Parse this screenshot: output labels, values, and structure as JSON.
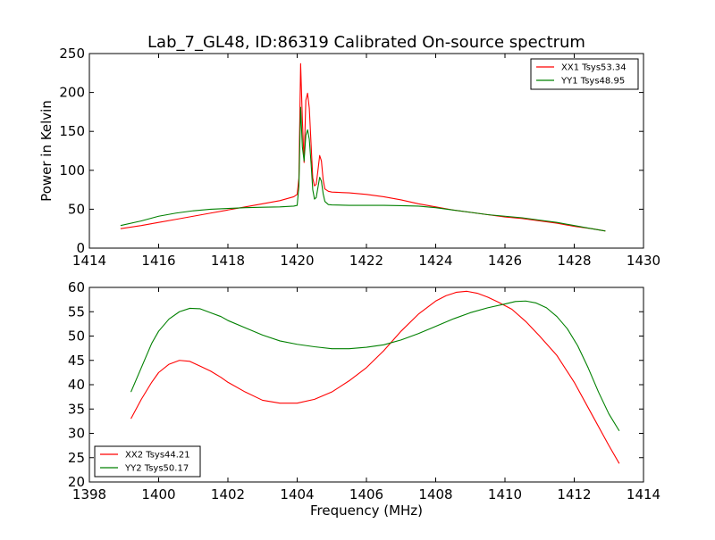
{
  "figure": {
    "title": "Lab_7_GL48, ID:86319 Calibrated On-source spectrum"
  },
  "chart_data": [
    {
      "type": "line",
      "title": "Lab_7_GL48, ID:86319 Calibrated On-source spectrum",
      "xlabel": "",
      "ylabel": "Power in Kelvin",
      "xlim": [
        1414,
        1430
      ],
      "ylim": [
        0,
        250
      ],
      "xticks": [
        1414,
        1416,
        1418,
        1420,
        1422,
        1424,
        1426,
        1428,
        1430
      ],
      "yticks": [
        0,
        50,
        100,
        150,
        200,
        250
      ],
      "legend_position": "upper-right",
      "grid": false,
      "series": [
        {
          "name": "XX1 Tsys53.34",
          "color": "#ff0000",
          "x": [
            1414.9,
            1415.5,
            1416.0,
            1416.5,
            1417.0,
            1417.5,
            1418.0,
            1418.5,
            1419.0,
            1419.5,
            1419.9,
            1420.0,
            1420.05,
            1420.1,
            1420.15,
            1420.2,
            1420.25,
            1420.3,
            1420.35,
            1420.4,
            1420.45,
            1420.5,
            1420.55,
            1420.6,
            1420.65,
            1420.7,
            1420.75,
            1420.8,
            1420.9,
            1421.0,
            1421.5,
            1422.0,
            1422.5,
            1423.0,
            1423.5,
            1424.0,
            1424.5,
            1425.0,
            1425.5,
            1426.0,
            1426.5,
            1427.0,
            1427.5,
            1428.0,
            1428.5,
            1428.9
          ],
          "y": [
            25,
            29,
            33,
            37,
            41,
            45,
            49,
            53,
            57,
            61,
            66,
            69,
            90,
            237,
            165,
            110,
            190,
            199,
            180,
            135,
            90,
            80,
            82,
            100,
            119,
            112,
            88,
            76,
            73,
            72,
            71,
            69,
            66,
            62,
            57,
            53,
            49,
            46,
            43,
            40,
            38,
            35,
            32,
            28,
            25,
            22
          ]
        },
        {
          "name": "YY1 Tsys48.95",
          "color": "#008000",
          "x": [
            1414.9,
            1415.5,
            1416.0,
            1416.5,
            1417.0,
            1417.5,
            1418.0,
            1418.5,
            1419.0,
            1419.5,
            1419.9,
            1420.0,
            1420.05,
            1420.1,
            1420.15,
            1420.2,
            1420.25,
            1420.3,
            1420.35,
            1420.4,
            1420.45,
            1420.5,
            1420.55,
            1420.6,
            1420.65,
            1420.7,
            1420.75,
            1420.8,
            1420.9,
            1421.0,
            1421.5,
            1422.0,
            1422.5,
            1423.0,
            1423.5,
            1424.0,
            1424.5,
            1425.0,
            1425.5,
            1426.0,
            1426.5,
            1427.0,
            1427.5,
            1428.0,
            1428.5,
            1428.9
          ],
          "y": [
            29,
            35,
            41,
            45,
            48,
            50,
            51,
            52,
            52.5,
            53,
            54,
            55,
            80,
            181,
            130,
            112,
            145,
            152,
            140,
            110,
            75,
            63,
            65,
            78,
            91,
            86,
            70,
            60,
            56,
            55.5,
            55,
            55,
            55,
            54.5,
            54,
            52,
            49,
            46,
            43,
            41,
            39,
            36,
            33,
            29,
            25,
            22
          ]
        }
      ]
    },
    {
      "type": "line",
      "title": "",
      "xlabel": "Frequency (MHz)",
      "ylabel": "",
      "xlim": [
        1398,
        1414
      ],
      "ylim": [
        20,
        60
      ],
      "xticks": [
        1398,
        1400,
        1402,
        1404,
        1406,
        1408,
        1410,
        1412,
        1414
      ],
      "yticks": [
        20,
        25,
        30,
        35,
        40,
        45,
        50,
        55,
        60
      ],
      "legend_position": "lower-left",
      "grid": false,
      "series": [
        {
          "name": "XX2 Tsys44.21",
          "color": "#ff0000",
          "x": [
            1399.2,
            1399.5,
            1399.8,
            1400.0,
            1400.3,
            1400.6,
            1400.9,
            1401.2,
            1401.5,
            1401.8,
            1402.0,
            1402.5,
            1403.0,
            1403.5,
            1404.0,
            1404.5,
            1405.0,
            1405.5,
            1406.0,
            1406.5,
            1407.0,
            1407.5,
            1408.0,
            1408.3,
            1408.6,
            1408.9,
            1409.2,
            1409.5,
            1409.8,
            1410.2,
            1410.6,
            1411.0,
            1411.5,
            1412.0,
            1412.5,
            1413.0,
            1413.3
          ],
          "y": [
            33,
            37,
            40.5,
            42.5,
            44.2,
            45,
            44.8,
            43.8,
            42.8,
            41.5,
            40.5,
            38.5,
            36.8,
            36.2,
            36.2,
            37,
            38.5,
            40.8,
            43.5,
            47,
            51,
            54.5,
            57.2,
            58.3,
            59,
            59.2,
            58.8,
            58,
            57,
            55.5,
            53,
            50,
            46,
            40.5,
            34,
            27.5,
            23.8
          ]
        },
        {
          "name": "YY2 Tsys50.17",
          "color": "#008000",
          "x": [
            1399.2,
            1399.5,
            1399.8,
            1400.0,
            1400.3,
            1400.6,
            1400.9,
            1401.2,
            1401.5,
            1401.8,
            1402.0,
            1402.5,
            1403.0,
            1403.5,
            1404.0,
            1404.5,
            1405.0,
            1405.5,
            1406.0,
            1406.5,
            1407.0,
            1407.5,
            1408.0,
            1408.5,
            1409.0,
            1409.5,
            1410.0,
            1410.3,
            1410.6,
            1410.9,
            1411.2,
            1411.5,
            1411.8,
            1412.1,
            1412.4,
            1412.7,
            1413.0,
            1413.3
          ],
          "y": [
            38.5,
            43.5,
            48.5,
            51,
            53.5,
            55,
            55.7,
            55.6,
            54.8,
            54,
            53.2,
            51.7,
            50.2,
            49,
            48.3,
            47.8,
            47.4,
            47.4,
            47.7,
            48.2,
            49.2,
            50.5,
            52,
            53.5,
            54.8,
            55.8,
            56.6,
            57.1,
            57.2,
            56.8,
            55.8,
            54,
            51.5,
            48,
            43.5,
            38.5,
            34,
            30.5
          ]
        }
      ]
    }
  ]
}
